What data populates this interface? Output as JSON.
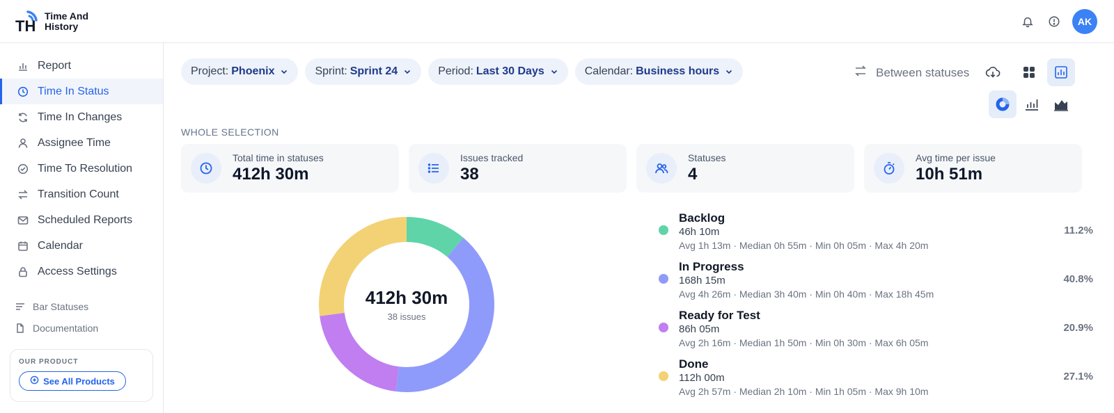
{
  "app": {
    "title_line1": "Time And",
    "title_line2": "History",
    "logo_letters": "TH"
  },
  "header": {
    "user_initials": "AK",
    "icons": [
      "bell-icon",
      "info-icon"
    ]
  },
  "sidebar": {
    "items": [
      {
        "label": "Report",
        "icon": "bar-chart-icon",
        "active": false
      },
      {
        "label": "Time In Status",
        "icon": "clock-icon",
        "active": true
      },
      {
        "label": "Time In Changes",
        "icon": "refresh-icon",
        "active": false
      },
      {
        "label": "Assignee Time",
        "icon": "user-icon",
        "active": false
      },
      {
        "label": "Time To Resolution",
        "icon": "check-circle-icon",
        "active": false
      },
      {
        "label": "Transition Count",
        "icon": "transfer-icon",
        "active": false
      },
      {
        "label": "Scheduled Reports",
        "icon": "mail-icon",
        "active": false
      },
      {
        "label": "Calendar",
        "icon": "calendar-icon",
        "active": false
      },
      {
        "label": "Access Settings",
        "icon": "lock-icon",
        "active": false
      }
    ],
    "sub_items": [
      {
        "label": "Bar Statuses",
        "icon": "list-icon"
      },
      {
        "label": "Documentation",
        "icon": "document-icon"
      }
    ],
    "product": {
      "label": "OUR PRODUCT",
      "button": "See All Products"
    }
  },
  "filters": [
    {
      "key": "Project:",
      "value": "Phoenix"
    },
    {
      "key": "Sprint:",
      "value": "Sprint 24"
    },
    {
      "key": "Period:",
      "value": "Last 30 Days"
    },
    {
      "key": "Calendar:",
      "value": "Business hours"
    }
  ],
  "toolbar": {
    "between_label": "Between statuses"
  },
  "section": {
    "title": "WHOLE SELECTION"
  },
  "stats": [
    {
      "label": "Total time in statuses",
      "value": "412h 30m",
      "icon": "clock-icon"
    },
    {
      "label": "Issues tracked",
      "value": "38",
      "icon": "list-icon"
    },
    {
      "label": "Statuses",
      "value": "4",
      "icon": "users-icon"
    },
    {
      "label": "Avg time per issue",
      "value": "10h 51m",
      "icon": "stopwatch-icon"
    }
  ],
  "donut": {
    "center_value": "412h 30m",
    "center_sub": "38 issues"
  },
  "chart_data": {
    "type": "pie",
    "categories": [
      "Backlog",
      "In Progress",
      "Ready for Test",
      "Done"
    ],
    "values": [
      11.2,
      40.8,
      20.9,
      27.1
    ],
    "colors": [
      "#5fd4a8",
      "#8f9bfa",
      "#c07ef0",
      "#f2d275"
    ]
  },
  "legend": [
    {
      "name": "Backlog",
      "time": "46h 10m",
      "meta": "Avg 1h 13m · Median 0h 55m · Min 0h 05m · Max 4h 20m",
      "pct": "11.2%",
      "color": "#5fd4a8"
    },
    {
      "name": "In Progress",
      "time": "168h 15m",
      "meta": "Avg 4h 26m · Median 3h 40m · Min 0h 40m · Max 18h 45m",
      "pct": "40.8%",
      "color": "#8f9bfa"
    },
    {
      "name": "Ready for Test",
      "time": "86h 05m",
      "meta": "Avg 2h 16m · Median 1h 50m · Min 0h 30m · Max 6h 05m",
      "pct": "20.9%",
      "color": "#c07ef0"
    },
    {
      "name": "Done",
      "time": "112h 00m",
      "meta": "Avg 2h 57m · Median 2h 10m · Min 1h 05m · Max 9h 10m",
      "pct": "27.1%",
      "color": "#f2d275"
    }
  ]
}
